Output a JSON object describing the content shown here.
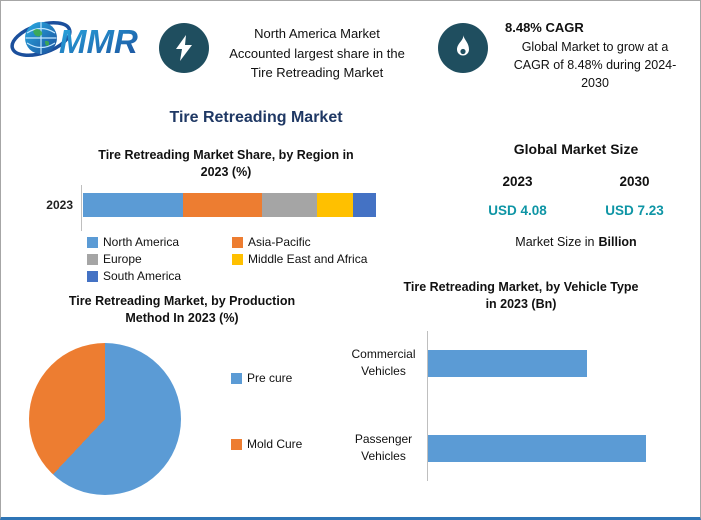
{
  "brand": {
    "logo_text": "MMR"
  },
  "header": {
    "share_card": {
      "lines": [
        "North America Market",
        "Accounted largest share in the",
        "Tire Retreading Market"
      ]
    },
    "cagr_card": {
      "title": "8.48% CAGR",
      "lines": [
        "Global Market to grow at a",
        "CAGR of 8.48% during 2024-",
        "2030"
      ]
    }
  },
  "page_title": "Tire Retreading Market",
  "market_size": {
    "title": "Global Market Size",
    "year_left": "2023",
    "year_right": "2030",
    "value_left": "USD 4.08",
    "value_right": "USD 7.23",
    "note_prefix": "Market Size in",
    "note_bold": "Billion"
  },
  "colors": {
    "title_navy": "#1f3864",
    "accent_teal": "#0e95a5",
    "icon_circle": "#1f4e5f"
  },
  "chart_data": [
    {
      "type": "bar",
      "subtype": "stacked-horizontal",
      "title": "Tire Retreading Market Share, by Region in 2023 (%)",
      "title_lines": [
        "Tire Retreading Market Share, by Region in",
        "2023 (%)"
      ],
      "categories": [
        "2023"
      ],
      "units": "% (estimated from segment widths)",
      "legend_position": "bottom",
      "series": [
        {
          "name": "North America",
          "color": "#5b9bd5",
          "values": [
            34
          ]
        },
        {
          "name": "Asia-Pacific",
          "color": "#ed7d31",
          "values": [
            27
          ]
        },
        {
          "name": "Europe",
          "color": "#a5a5a5",
          "values": [
            19
          ]
        },
        {
          "name": "Middle East and Africa",
          "color": "#ffc000",
          "values": [
            12
          ]
        },
        {
          "name": "South America",
          "color": "#4472c4",
          "values": [
            8
          ]
        }
      ]
    },
    {
      "type": "pie",
      "title": "Tire Retreading Market, by Production Method In 2023 (%)",
      "title_lines": [
        "Tire Retreading Market, by Production",
        "Method In 2023 (%)"
      ],
      "labels": [
        "Pre cure",
        "Mold Cure"
      ],
      "values": [
        62,
        38
      ],
      "colors": [
        "#5b9bd5",
        "#ed7d31"
      ],
      "units": "% (estimated from slice angles)",
      "legend_position": "right"
    },
    {
      "type": "bar",
      "subtype": "horizontal",
      "title": "Tire Retreading Market, by Vehicle Type in 2023 (Bn)",
      "title_lines": [
        "Tire Retreading Market, by Vehicle Type",
        "in 2023 (Bn)"
      ],
      "categories": [
        "Commercial Vehicles",
        "Passenger Vehicles"
      ],
      "values": [
        73,
        100
      ],
      "units": "relative bar length, % of longest (axis unlabeled)",
      "color": "#5b9bd5"
    }
  ]
}
